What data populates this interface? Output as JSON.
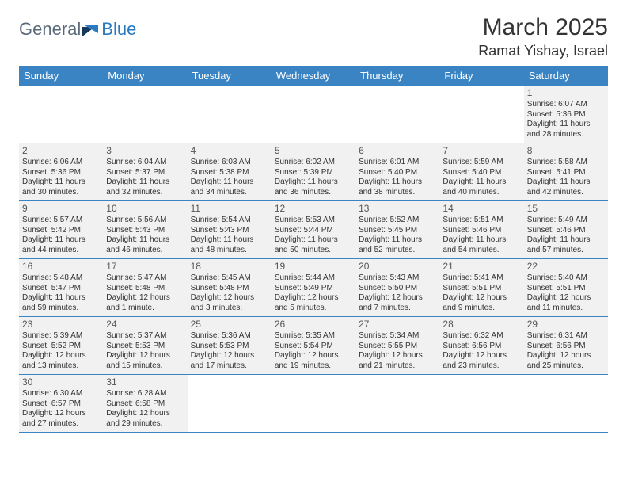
{
  "brand": {
    "part1": "General",
    "part2": "Blue"
  },
  "title": "March 2025",
  "location": "Ramat Yishay, Israel",
  "colors": {
    "header_bg": "#3b84c4",
    "header_text": "#ffffff",
    "cell_bg": "#f1f1f1",
    "border": "#3b84c4",
    "logo_gray": "#5a6a7a",
    "logo_blue": "#2a7ac0"
  },
  "weekdays": [
    "Sunday",
    "Monday",
    "Tuesday",
    "Wednesday",
    "Thursday",
    "Friday",
    "Saturday"
  ],
  "weeks": [
    [
      null,
      null,
      null,
      null,
      null,
      null,
      {
        "n": "1",
        "sr": "Sunrise: 6:07 AM",
        "ss": "Sunset: 5:36 PM",
        "d1": "Daylight: 11 hours",
        "d2": "and 28 minutes."
      }
    ],
    [
      {
        "n": "2",
        "sr": "Sunrise: 6:06 AM",
        "ss": "Sunset: 5:36 PM",
        "d1": "Daylight: 11 hours",
        "d2": "and 30 minutes."
      },
      {
        "n": "3",
        "sr": "Sunrise: 6:04 AM",
        "ss": "Sunset: 5:37 PM",
        "d1": "Daylight: 11 hours",
        "d2": "and 32 minutes."
      },
      {
        "n": "4",
        "sr": "Sunrise: 6:03 AM",
        "ss": "Sunset: 5:38 PM",
        "d1": "Daylight: 11 hours",
        "d2": "and 34 minutes."
      },
      {
        "n": "5",
        "sr": "Sunrise: 6:02 AM",
        "ss": "Sunset: 5:39 PM",
        "d1": "Daylight: 11 hours",
        "d2": "and 36 minutes."
      },
      {
        "n": "6",
        "sr": "Sunrise: 6:01 AM",
        "ss": "Sunset: 5:40 PM",
        "d1": "Daylight: 11 hours",
        "d2": "and 38 minutes."
      },
      {
        "n": "7",
        "sr": "Sunrise: 5:59 AM",
        "ss": "Sunset: 5:40 PM",
        "d1": "Daylight: 11 hours",
        "d2": "and 40 minutes."
      },
      {
        "n": "8",
        "sr": "Sunrise: 5:58 AM",
        "ss": "Sunset: 5:41 PM",
        "d1": "Daylight: 11 hours",
        "d2": "and 42 minutes."
      }
    ],
    [
      {
        "n": "9",
        "sr": "Sunrise: 5:57 AM",
        "ss": "Sunset: 5:42 PM",
        "d1": "Daylight: 11 hours",
        "d2": "and 44 minutes."
      },
      {
        "n": "10",
        "sr": "Sunrise: 5:56 AM",
        "ss": "Sunset: 5:43 PM",
        "d1": "Daylight: 11 hours",
        "d2": "and 46 minutes."
      },
      {
        "n": "11",
        "sr": "Sunrise: 5:54 AM",
        "ss": "Sunset: 5:43 PM",
        "d1": "Daylight: 11 hours",
        "d2": "and 48 minutes."
      },
      {
        "n": "12",
        "sr": "Sunrise: 5:53 AM",
        "ss": "Sunset: 5:44 PM",
        "d1": "Daylight: 11 hours",
        "d2": "and 50 minutes."
      },
      {
        "n": "13",
        "sr": "Sunrise: 5:52 AM",
        "ss": "Sunset: 5:45 PM",
        "d1": "Daylight: 11 hours",
        "d2": "and 52 minutes."
      },
      {
        "n": "14",
        "sr": "Sunrise: 5:51 AM",
        "ss": "Sunset: 5:46 PM",
        "d1": "Daylight: 11 hours",
        "d2": "and 54 minutes."
      },
      {
        "n": "15",
        "sr": "Sunrise: 5:49 AM",
        "ss": "Sunset: 5:46 PM",
        "d1": "Daylight: 11 hours",
        "d2": "and 57 minutes."
      }
    ],
    [
      {
        "n": "16",
        "sr": "Sunrise: 5:48 AM",
        "ss": "Sunset: 5:47 PM",
        "d1": "Daylight: 11 hours",
        "d2": "and 59 minutes."
      },
      {
        "n": "17",
        "sr": "Sunrise: 5:47 AM",
        "ss": "Sunset: 5:48 PM",
        "d1": "Daylight: 12 hours",
        "d2": "and 1 minute."
      },
      {
        "n": "18",
        "sr": "Sunrise: 5:45 AM",
        "ss": "Sunset: 5:48 PM",
        "d1": "Daylight: 12 hours",
        "d2": "and 3 minutes."
      },
      {
        "n": "19",
        "sr": "Sunrise: 5:44 AM",
        "ss": "Sunset: 5:49 PM",
        "d1": "Daylight: 12 hours",
        "d2": "and 5 minutes."
      },
      {
        "n": "20",
        "sr": "Sunrise: 5:43 AM",
        "ss": "Sunset: 5:50 PM",
        "d1": "Daylight: 12 hours",
        "d2": "and 7 minutes."
      },
      {
        "n": "21",
        "sr": "Sunrise: 5:41 AM",
        "ss": "Sunset: 5:51 PM",
        "d1": "Daylight: 12 hours",
        "d2": "and 9 minutes."
      },
      {
        "n": "22",
        "sr": "Sunrise: 5:40 AM",
        "ss": "Sunset: 5:51 PM",
        "d1": "Daylight: 12 hours",
        "d2": "and 11 minutes."
      }
    ],
    [
      {
        "n": "23",
        "sr": "Sunrise: 5:39 AM",
        "ss": "Sunset: 5:52 PM",
        "d1": "Daylight: 12 hours",
        "d2": "and 13 minutes."
      },
      {
        "n": "24",
        "sr": "Sunrise: 5:37 AM",
        "ss": "Sunset: 5:53 PM",
        "d1": "Daylight: 12 hours",
        "d2": "and 15 minutes."
      },
      {
        "n": "25",
        "sr": "Sunrise: 5:36 AM",
        "ss": "Sunset: 5:53 PM",
        "d1": "Daylight: 12 hours",
        "d2": "and 17 minutes."
      },
      {
        "n": "26",
        "sr": "Sunrise: 5:35 AM",
        "ss": "Sunset: 5:54 PM",
        "d1": "Daylight: 12 hours",
        "d2": "and 19 minutes."
      },
      {
        "n": "27",
        "sr": "Sunrise: 5:34 AM",
        "ss": "Sunset: 5:55 PM",
        "d1": "Daylight: 12 hours",
        "d2": "and 21 minutes."
      },
      {
        "n": "28",
        "sr": "Sunrise: 6:32 AM",
        "ss": "Sunset: 6:56 PM",
        "d1": "Daylight: 12 hours",
        "d2": "and 23 minutes."
      },
      {
        "n": "29",
        "sr": "Sunrise: 6:31 AM",
        "ss": "Sunset: 6:56 PM",
        "d1": "Daylight: 12 hours",
        "d2": "and 25 minutes."
      }
    ],
    [
      {
        "n": "30",
        "sr": "Sunrise: 6:30 AM",
        "ss": "Sunset: 6:57 PM",
        "d1": "Daylight: 12 hours",
        "d2": "and 27 minutes."
      },
      {
        "n": "31",
        "sr": "Sunrise: 6:28 AM",
        "ss": "Sunset: 6:58 PM",
        "d1": "Daylight: 12 hours",
        "d2": "and 29 minutes."
      },
      null,
      null,
      null,
      null,
      null
    ]
  ]
}
